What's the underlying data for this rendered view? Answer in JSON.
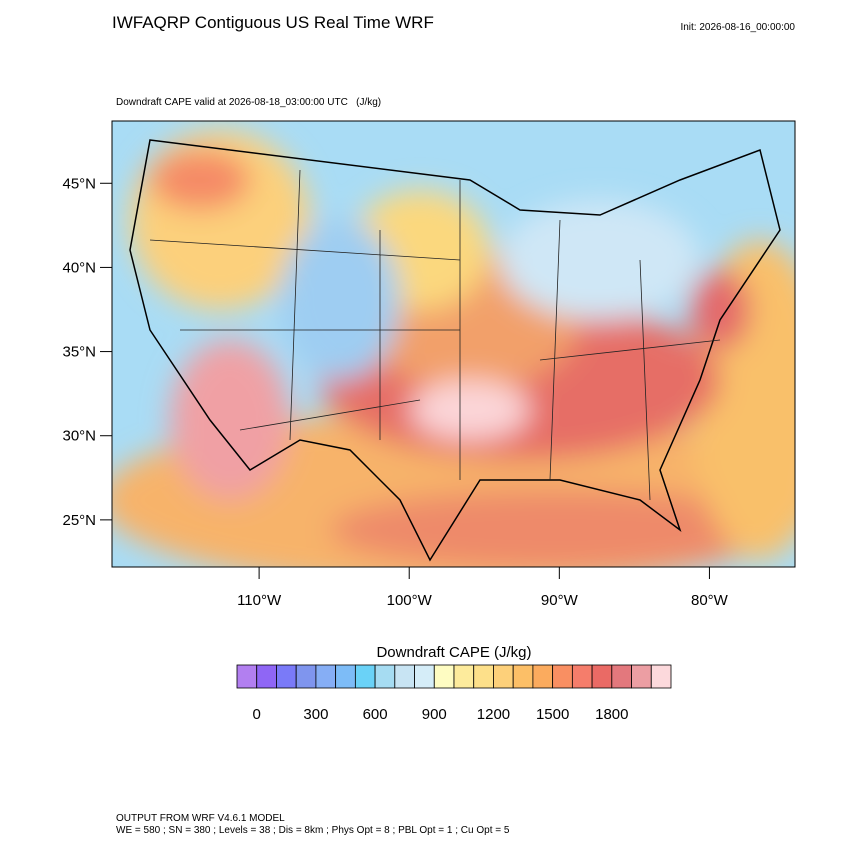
{
  "header": {
    "title": "IWFAQRP Contiguous US Real Time WRF",
    "init": "Init: 2026-08-16_00:00:00"
  },
  "map": {
    "subtitle": "Downdraft CAPE valid at 2026-08-18_03:00:00 UTC   (J/kg)",
    "xlim": [
      -119.8,
      -74.3
    ],
    "ylim": [
      22.2,
      48.7
    ],
    "yticks": [
      {
        "value": 45,
        "label": "45°N"
      },
      {
        "value": 40,
        "label": "40°N"
      },
      {
        "value": 35,
        "label": "35°N"
      },
      {
        "value": 30,
        "label": "30°N"
      },
      {
        "value": 25,
        "label": "25°N"
      }
    ],
    "xticks": [
      {
        "value": -110,
        "label": "110°W"
      },
      {
        "value": -100,
        "label": "100°W"
      },
      {
        "value": -90,
        "label": "90°W"
      },
      {
        "value": -80,
        "label": "80°W"
      }
    ]
  },
  "colorbar": {
    "title": "Downdraft CAPE  (J/kg)",
    "range": [
      -100,
      2100
    ],
    "colors": [
      "#b27ff0",
      "#8f66f5",
      "#7a7af8",
      "#7f95ee",
      "#86aef5",
      "#7dbcf7",
      "#6ad2f7",
      "#a6dcf2",
      "#c8e4f3",
      "#d5edf8",
      "#fefcc2",
      "#fdeb9c",
      "#fde08a",
      "#fdd07a",
      "#fcbf67",
      "#fbab5e",
      "#f98f62",
      "#f57d6b",
      "#ea6a65",
      "#e3787d",
      "#ec9ea3",
      "#fcd9dc"
    ],
    "ticks": [
      0,
      300,
      600,
      900,
      1200,
      1500,
      1800
    ]
  },
  "footer": {
    "line1": "OUTPUT FROM WRF V4.6.1 MODEL",
    "line2": "WE = 580 ; SN = 380 ; Levels = 38 ; Dis = 8km ; Phys Opt = 8 ; PBL Opt = 1 ; Cu Opt = 5"
  }
}
